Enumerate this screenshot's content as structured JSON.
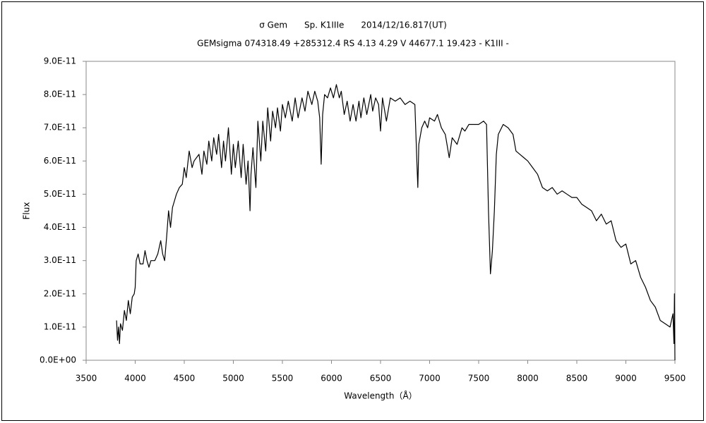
{
  "chart_data": {
    "type": "line",
    "title": "σ Gem　　Sp. K1IIIe　　2014/12/16.817(UT)",
    "subtitle": "GEMsigma 074318.49 +285312.4 RS 4.13 4.29 V 44677.1 19.423 - K1III -",
    "x_label": "Wavelength（Å）",
    "y_label": "Flux",
    "color": "#000000",
    "xlim": [
      3500,
      9500
    ],
    "xticks": [
      3500,
      4000,
      4500,
      5000,
      5500,
      6000,
      6500,
      7000,
      7500,
      8000,
      8500,
      9000,
      9500
    ],
    "ylim": [
      0,
      9e-11
    ],
    "yticks": [
      {
        "value": 0,
        "label": "0.0E+00"
      },
      {
        "value": 1e-11,
        "label": "1.0E-11"
      },
      {
        "value": 2e-11,
        "label": "2.0E-11"
      },
      {
        "value": 3e-11,
        "label": "3.0E-11"
      },
      {
        "value": 4e-11,
        "label": "4.0E-11"
      },
      {
        "value": 5e-11,
        "label": "5.0E-11"
      },
      {
        "value": 6e-11,
        "label": "6.0E-11"
      },
      {
        "value": 7e-11,
        "label": "7.0E-11"
      },
      {
        "value": 8e-11,
        "label": "8.0E-11"
      },
      {
        "value": 9e-11,
        "label": "9.0E-11"
      }
    ],
    "grid": false,
    "x": [
      3810,
      3820,
      3830,
      3840,
      3850,
      3870,
      3890,
      3910,
      3930,
      3950,
      3970,
      3990,
      4000,
      4010,
      4030,
      4050,
      4080,
      4100,
      4120,
      4140,
      4160,
      4200,
      4230,
      4260,
      4280,
      4300,
      4320,
      4340,
      4360,
      4380,
      4400,
      4420,
      4450,
      4480,
      4500,
      4520,
      4550,
      4580,
      4600,
      4650,
      4680,
      4700,
      4730,
      4750,
      4780,
      4800,
      4830,
      4850,
      4880,
      4900,
      4920,
      4950,
      4980,
      5000,
      5020,
      5050,
      5080,
      5100,
      5130,
      5150,
      5170,
      5180,
      5200,
      5230,
      5250,
      5280,
      5300,
      5330,
      5350,
      5380,
      5400,
      5430,
      5450,
      5480,
      5500,
      5530,
      5560,
      5600,
      5630,
      5660,
      5700,
      5730,
      5760,
      5800,
      5830,
      5860,
      5880,
      5895,
      5910,
      5930,
      5960,
      5990,
      6020,
      6050,
      6080,
      6100,
      6130,
      6160,
      6190,
      6220,
      6250,
      6280,
      6300,
      6330,
      6360,
      6400,
      6420,
      6450,
      6480,
      6500,
      6520,
      6560,
      6600,
      6650,
      6700,
      6750,
      6800,
      6850,
      6870,
      6880,
      6890,
      6920,
      6950,
      6980,
      7000,
      7050,
      7080,
      7120,
      7160,
      7200,
      7230,
      7280,
      7300,
      7330,
      7360,
      7400,
      7450,
      7500,
      7550,
      7580,
      7600,
      7620,
      7640,
      7660,
      7680,
      7700,
      7750,
      7800,
      7850,
      7880,
      7920,
      7960,
      8000,
      8050,
      8100,
      8150,
      8200,
      8250,
      8300,
      8350,
      8400,
      8450,
      8500,
      8550,
      8600,
      8650,
      8700,
      8750,
      8800,
      8850,
      8900,
      8950,
      9000,
      9050,
      9100,
      9150,
      9200,
      9250,
      9300,
      9350,
      9400,
      9450,
      9480,
      9490,
      9495,
      9500
    ],
    "values": [
      1.2e-11,
      6e-12,
      1e-11,
      5e-12,
      1.1e-11,
      9e-12,
      1.5e-11,
      1.2e-11,
      1.8e-11,
      1.4e-11,
      1.9e-11,
      2e-11,
      2.2e-11,
      3e-11,
      3.2e-11,
      2.9e-11,
      2.9e-11,
      3.3e-11,
      3e-11,
      2.8e-11,
      3e-11,
      3e-11,
      3.2e-11,
      3.6e-11,
      3.2e-11,
      3e-11,
      3.7e-11,
      4.5e-11,
      4e-11,
      4.6e-11,
      4.8e-11,
      5e-11,
      5.2e-11,
      5.3e-11,
      5.8e-11,
      5.5e-11,
      6.3e-11,
      5.8e-11,
      6e-11,
      6.2e-11,
      5.6e-11,
      6.3e-11,
      5.9e-11,
      6.6e-11,
      6e-11,
      6.7e-11,
      6.2e-11,
      6.8e-11,
      5.8e-11,
      6.6e-11,
      6e-11,
      7e-11,
      5.6e-11,
      6.5e-11,
      5.8e-11,
      6.6e-11,
      5.5e-11,
      6.5e-11,
      5.3e-11,
      6e-11,
      4.5e-11,
      5.6e-11,
      6.4e-11,
      5.2e-11,
      7.2e-11,
      6e-11,
      7.2e-11,
      6.3e-11,
      7.6e-11,
      6.6e-11,
      7.5e-11,
      7e-11,
      7.6e-11,
      6.9e-11,
      7.7e-11,
      7.3e-11,
      7.8e-11,
      7.2e-11,
      7.9e-11,
      7.3e-11,
      7.9e-11,
      7.5e-11,
      8.1e-11,
      7.7e-11,
      8.1e-11,
      7.8e-11,
      7.3e-11,
      5.9e-11,
      7.4e-11,
      8e-11,
      7.9e-11,
      8.2e-11,
      7.9e-11,
      8.3e-11,
      7.9e-11,
      8.1e-11,
      7.4e-11,
      7.8e-11,
      7.2e-11,
      7.7e-11,
      7.2e-11,
      7.8e-11,
      7.3e-11,
      7.9e-11,
      7.4e-11,
      8e-11,
      7.5e-11,
      7.9e-11,
      7.7e-11,
      6.9e-11,
      7.9e-11,
      7.2e-11,
      7.9e-11,
      7.8e-11,
      7.9e-11,
      7.7e-11,
      7.8e-11,
      7.7e-11,
      6e-11,
      5.2e-11,
      6.5e-11,
      7e-11,
      7.2e-11,
      7e-11,
      7.3e-11,
      7.2e-11,
      7.4e-11,
      7e-11,
      6.8e-11,
      6.1e-11,
      6.7e-11,
      6.5e-11,
      6.7e-11,
      7e-11,
      6.9e-11,
      7.1e-11,
      7.1e-11,
      7.1e-11,
      7.2e-11,
      7.1e-11,
      4.5e-11,
      2.6e-11,
      3.3e-11,
      4.5e-11,
      6.2e-11,
      6.8e-11,
      7.1e-11,
      7e-11,
      6.8e-11,
      6.3e-11,
      6.2e-11,
      6.1e-11,
      6e-11,
      5.8e-11,
      5.6e-11,
      5.2e-11,
      5.1e-11,
      5.2e-11,
      5e-11,
      5.1e-11,
      5e-11,
      4.9e-11,
      4.9e-11,
      4.7e-11,
      4.6e-11,
      4.5e-11,
      4.2e-11,
      4.4e-11,
      4.1e-11,
      4.2e-11,
      3.6e-11,
      3.4e-11,
      3.5e-11,
      2.9e-11,
      3e-11,
      2.5e-11,
      2.2e-11,
      1.8e-11,
      1.6e-11,
      1.2e-11,
      1.1e-11,
      1e-11,
      1.4e-11,
      5e-12,
      2e-11,
      0
    ]
  }
}
